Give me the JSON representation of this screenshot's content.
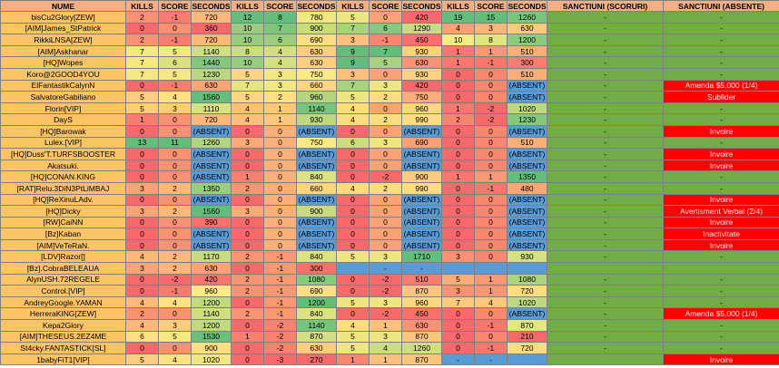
{
  "table": {
    "header": [
      "NUME",
      "KILLS",
      "SCORE",
      "SECONDS",
      "KILLS",
      "SCORE",
      "SECONDS",
      "KILLS",
      "SCORE",
      "SECONDS",
      "KILLS",
      "SCORE",
      "SECONDS",
      "SANCTIUNI (SCORURI)",
      "SANCTIUNI (ABSENTE)"
    ],
    "rows": [
      [
        "bisCu2Glory[ZEW]",
        2,
        -1,
        720,
        12,
        8,
        780,
        5,
        0,
        420,
        19,
        15,
        1260,
        "-",
        "-"
      ],
      [
        "[AIM]James_StPatrick",
        0,
        0,
        360,
        10,
        7,
        900,
        7,
        6,
        1290,
        4,
        3,
        630,
        "-",
        "-"
      ],
      [
        "RikkiLNSA[ZEW]",
        2,
        -1,
        720,
        10,
        6,
        690,
        3,
        -1,
        450,
        10,
        8,
        1200,
        "-",
        "-"
      ],
      [
        "[AIM]Askhanar",
        7,
        5,
        1140,
        8,
        4,
        630,
        9,
        7,
        930,
        1,
        1,
        510,
        "-",
        "-"
      ],
      [
        "[HQ]Wopes",
        7,
        6,
        1440,
        10,
        4,
        630,
        9,
        5,
        630,
        1,
        -1,
        300,
        "-",
        "-"
      ],
      [
        "Koro@2GOOD4YOU",
        7,
        5,
        1230,
        5,
        3,
        750,
        3,
        0,
        930,
        0,
        0,
        510,
        "-",
        "-"
      ],
      [
        "ElFantastikCalynN",
        0,
        -1,
        630,
        7,
        3,
        660,
        7,
        3,
        420,
        0,
        0,
        "(ABSENT)",
        "-",
        "Amenda $5,000 (1/4)"
      ],
      [
        "SalvatoreGabiliano",
        5,
        4,
        1560,
        5,
        2,
        960,
        5,
        2,
        750,
        0,
        0,
        "(ABSENT)",
        "-",
        "Sublider"
      ],
      [
        "Florin[VIP]",
        5,
        3,
        1110,
        4,
        1,
        1140,
        4,
        0,
        960,
        1,
        -2,
        1020,
        "-",
        "-"
      ],
      [
        "DayS",
        1,
        0,
        720,
        4,
        1,
        930,
        4,
        2,
        990,
        2,
        -2,
        1230,
        "-",
        "-"
      ],
      [
        "[HQ]Barowak",
        0,
        0,
        "(ABSENT)",
        0,
        0,
        "(ABSENT)",
        0,
        0,
        "(ABSENT)",
        0,
        0,
        "(ABSENT)",
        "-",
        "Invoire"
      ],
      [
        "Lulex.[VIP]",
        13,
        11,
        1260,
        3,
        0,
        750,
        6,
        3,
        690,
        0,
        0,
        510,
        "-",
        "-"
      ],
      [
        "[HQ]Duss'T.TURFSBOOSTER",
        0,
        0,
        "(ABSENT)",
        0,
        0,
        "(ABSENT)",
        0,
        0,
        "(ABSENT)",
        0,
        0,
        "(ABSENT)",
        "-",
        "Invoire"
      ],
      [
        "Akatsuki.",
        0,
        0,
        "(ABSENT)",
        0,
        0,
        "(ABSENT)",
        0,
        0,
        "(ABSENT)",
        0,
        0,
        "(ABSENT)",
        "-",
        "Invoire"
      ],
      [
        "[HQ]CONAN.KING",
        0,
        0,
        "(ABSENT)",
        1,
        0,
        840,
        0,
        -2,
        900,
        1,
        1,
        1350,
        "-",
        "-"
      ],
      [
        "[RAT]Relu.3DiN3PtLiMBAJ",
        3,
        2,
        1350,
        2,
        0,
        660,
        4,
        2,
        990,
        0,
        -1,
        480,
        "-",
        "-"
      ],
      [
        "[HQ]ReXinuLAdv.",
        0,
        0,
        "(ABSENT)",
        0,
        0,
        "(ABSENT)",
        0,
        0,
        "(ABSENT)",
        0,
        0,
        "(ABSENT)",
        "-",
        "Invoire"
      ],
      [
        "[HQ]Dicky",
        3,
        2,
        1560,
        3,
        0,
        900,
        0,
        0,
        "(ABSENT)",
        0,
        0,
        "(ABSENT)",
        "-",
        "Avertisment Verbal (2/4)"
      ],
      [
        "[RW]CaiNN",
        0,
        0,
        390,
        0,
        0,
        "(ABSENT)",
        0,
        0,
        "(ABSENT)",
        0,
        0,
        "(ABSENT)",
        "-",
        "Invoire"
      ],
      [
        "[Bz]Kaban",
        0,
        0,
        "(ABSENT)",
        0,
        0,
        "(ABSENT)",
        0,
        0,
        "(ABSENT)",
        0,
        0,
        "(ABSENT)",
        "-",
        "Inactivitate"
      ],
      [
        "[AIM]VeTeRaN.",
        0,
        0,
        "(ABSENT)",
        0,
        0,
        "(ABSENT)",
        0,
        0,
        "(ABSENT)",
        0,
        0,
        "(ABSENT)",
        "-",
        "Invoire"
      ],
      [
        "[LDV]Razor[]",
        4,
        2,
        1170,
        2,
        -1,
        840,
        5,
        3,
        1710,
        3,
        0,
        930,
        "-",
        "-"
      ],
      [
        "[Bz].CobraBELEAUA",
        3,
        2,
        630,
        0,
        -1,
        300,
        null,
        "-",
        "-",
        null,
        null,
        null,
        null,
        null
      ],
      [
        "AlynUSH.72REGELE",
        0,
        -2,
        420,
        2,
        -1,
        1080,
        0,
        -2,
        510,
        5,
        1,
        1080,
        "-",
        "-"
      ],
      [
        "Control.[VIP]",
        0,
        -1,
        960,
        2,
        -1,
        690,
        0,
        -2,
        870,
        3,
        1,
        720,
        "-",
        "-"
      ],
      [
        "AndreyGoogle.YAMAN",
        4,
        4,
        1200,
        0,
        -1,
        1200,
        5,
        3,
        960,
        7,
        4,
        1020,
        "-",
        "-"
      ],
      [
        "HerreraKING[ZEW]",
        2,
        0,
        1140,
        2,
        -1,
        840,
        0,
        -2,
        450,
        0,
        0,
        "(ABSENT)",
        "-",
        "Amenda $5,000 (1/4)"
      ],
      [
        "Kepa2Glory",
        4,
        3,
        1200,
        0,
        -2,
        1140,
        4,
        1,
        630,
        0,
        -1,
        870,
        "-",
        "-"
      ],
      [
        "[AIM]THESEUS.2EZ4ME",
        6,
        5,
        1530,
        1,
        -2,
        870,
        5,
        3,
        870,
        0,
        0,
        210,
        "-",
        "-"
      ],
      [
        "St4cky.FANTASTICK[SL]",
        0,
        0,
        900,
        0,
        -2,
        630,
        5,
        4,
        1260,
        0,
        -1,
        720,
        "-",
        "-"
      ],
      [
        "1babyFiT1[VIP]",
        5,
        4,
        1020,
        0,
        -3,
        270,
        1,
        1,
        870,
        "-",
        "-",
        null,
        null,
        "Invoire"
      ]
    ]
  }
}
